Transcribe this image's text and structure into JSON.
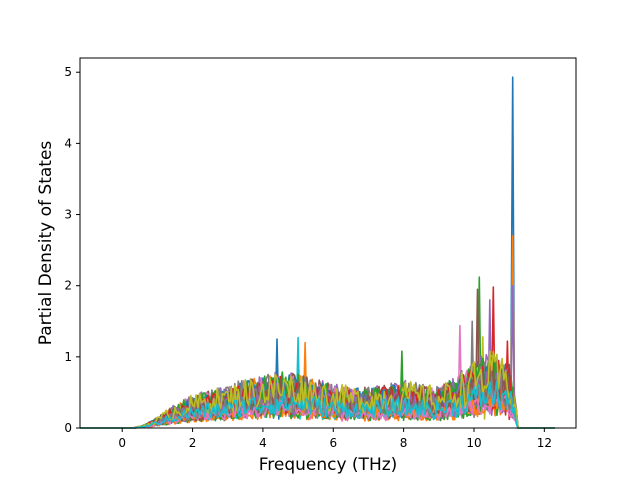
{
  "chart_data": {
    "type": "line",
    "title": "",
    "xlabel": "Frequency (THz)",
    "ylabel": "Partial Density of States",
    "xlim": [
      -1.2,
      12.9
    ],
    "ylim": [
      0,
      5.2
    ],
    "xticks": [
      0,
      2,
      4,
      6,
      8,
      10,
      12
    ],
    "yticks": [
      0,
      1,
      2,
      3,
      4,
      5
    ],
    "x_range": [
      -1.2,
      12.3
    ],
    "grid": false,
    "legend": "none",
    "colors": [
      "#1f77b4",
      "#ff7f0e",
      "#2ca02c",
      "#d62728",
      "#9467bd",
      "#8c564b",
      "#e377c2",
      "#7f7f7f",
      "#bcbd22",
      "#17becf"
    ],
    "series_count": 40,
    "envelope": {
      "x": [
        -1.2,
        0.3,
        0.6,
        1.0,
        1.5,
        2.0,
        2.5,
        3.0,
        3.5,
        4.0,
        4.5,
        5.0,
        5.5,
        6.0,
        6.5,
        7.0,
        7.5,
        8.0,
        8.5,
        9.0,
        9.5,
        10.0,
        10.5,
        11.0,
        11.3,
        12.3
      ],
      "y": [
        0,
        0,
        0.05,
        0.2,
        0.45,
        0.6,
        0.7,
        0.75,
        0.9,
        0.95,
        1.05,
        1.0,
        0.9,
        0.8,
        0.75,
        0.75,
        0.8,
        0.85,
        0.8,
        0.75,
        0.95,
        1.2,
        1.4,
        1.2,
        0,
        0
      ]
    },
    "peaks": [
      {
        "x": 11.1,
        "y": 4.93
      },
      {
        "x": 11.08,
        "y": 2.7
      },
      {
        "x": 10.15,
        "y": 2.12
      },
      {
        "x": 10.55,
        "y": 1.98
      },
      {
        "x": 10.45,
        "y": 1.8
      },
      {
        "x": 10.1,
        "y": 1.95
      },
      {
        "x": 9.6,
        "y": 1.44
      },
      {
        "x": 9.95,
        "y": 1.5
      },
      {
        "x": 10.25,
        "y": 1.28
      },
      {
        "x": 5.0,
        "y": 1.27
      },
      {
        "x": 4.4,
        "y": 1.25
      },
      {
        "x": 5.2,
        "y": 1.2
      },
      {
        "x": 7.95,
        "y": 1.08
      },
      {
        "x": 10.95,
        "y": 1.22
      },
      {
        "x": 11.12,
        "y": 2.0
      }
    ]
  }
}
